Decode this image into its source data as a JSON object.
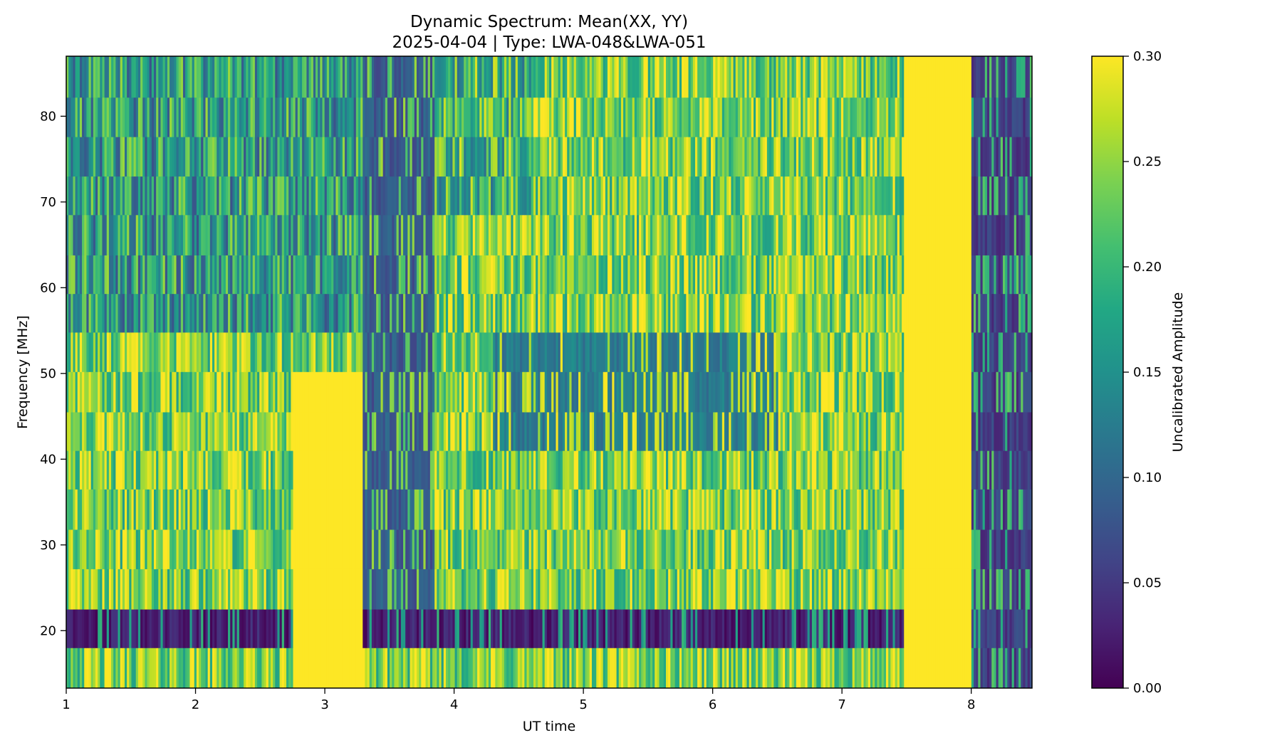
{
  "chart_data": {
    "type": "heatmap",
    "title": "Dynamic Spectrum: Mean(XX, YY)",
    "subtitle": "2025-04-04 | Type: LWA-048&LWA-051",
    "xlabel": "UT time",
    "ylabel": "Frequency [MHz]",
    "colorbar_label": "Uncalibrated Amplitude",
    "colormap": "viridis",
    "xlim": [
      1,
      8.47
    ],
    "ylim": [
      13.3,
      87
    ],
    "clim": [
      0,
      0.3
    ],
    "x_ticks": [
      1,
      2,
      3,
      4,
      5,
      6,
      7,
      8
    ],
    "y_ticks": [
      20,
      30,
      40,
      50,
      60,
      70,
      80
    ],
    "colorbar_ticks": [
      "0.00",
      "0.05",
      "0.10",
      "0.15",
      "0.20",
      "0.25",
      "0.30"
    ],
    "frequency_bands_mhz": [
      13.3,
      18,
      22.5,
      27.2,
      31.8,
      36.5,
      41,
      45.5,
      50.2,
      54.8,
      59.3,
      63.8,
      68.5,
      73,
      77.6,
      82.2,
      87
    ],
    "features": [
      {
        "label": "RFI band",
        "f_low": 18,
        "f_high": 22.5,
        "t_start": 1.0,
        "t_end": 8.47,
        "amplitude": 0.0
      },
      {
        "label": "high amplitude block",
        "f_low": 13.3,
        "f_high": 87,
        "t_start": 7.48,
        "t_end": 8.0,
        "amplitude": 0.3
      },
      {
        "label": "high amplitude block",
        "f_low": 13.3,
        "f_high": 52,
        "t_start": 2.75,
        "t_end": 3.3,
        "amplitude": 0.3
      },
      {
        "label": "low amplitude block",
        "f_low": 13.3,
        "f_high": 87,
        "t_start": 8.0,
        "t_end": 8.47,
        "amplitude": 0.03
      },
      {
        "label": "low amplitude block",
        "f_low": 22.5,
        "f_high": 87,
        "t_start": 3.3,
        "t_end": 3.85,
        "amplitude": 0.06
      },
      {
        "label": "drifting low-amplitude feature",
        "f_low": 40,
        "f_high": 55,
        "t_start": 4.3,
        "t_end": 6.5,
        "amplitude": 0.1
      }
    ]
  },
  "colors": {
    "viridis_low": "#440154",
    "viridis_high": "#fde725"
  }
}
